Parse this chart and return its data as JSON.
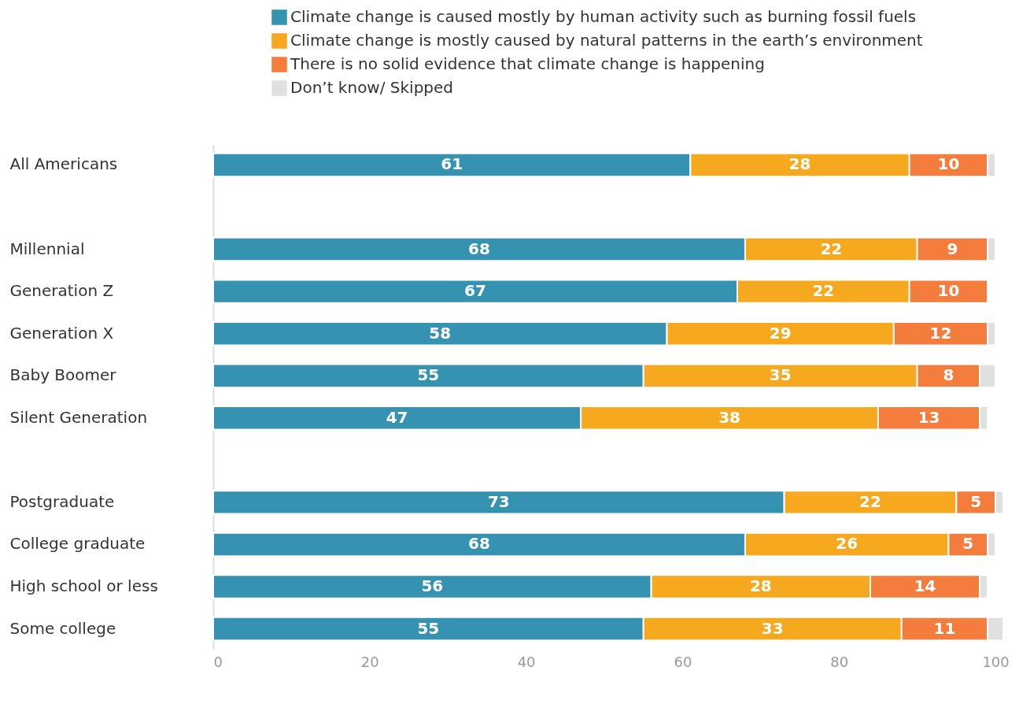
{
  "chart_data": {
    "type": "bar",
    "orientation": "horizontal",
    "stacked": true,
    "categories": [
      "All Americans",
      null,
      "Millennial",
      "Generation Z",
      "Generation X",
      "Baby Boomer",
      "Silent Generation",
      null,
      "Postgraduate",
      "College graduate",
      "High school or less",
      "Some college"
    ],
    "series": [
      {
        "name": "Climate change is caused mostly by human activity such as burning fossil fuels",
        "color": "#3592b0",
        "values": [
          61,
          null,
          68,
          67,
          58,
          55,
          47,
          null,
          73,
          68,
          56,
          55
        ],
        "value_labels": [
          "61",
          null,
          "68",
          "67",
          "58",
          "55",
          "47",
          null,
          "73",
          "68",
          "56",
          "55"
        ]
      },
      {
        "name": "Climate change is mostly caused by natural patterns in the earth’s environment",
        "color": "#f6a91e",
        "values": [
          28,
          null,
          22,
          22,
          29,
          35,
          38,
          null,
          22,
          26,
          28,
          33
        ],
        "value_labels": [
          "28",
          null,
          "22",
          "22",
          "29",
          "35",
          "38",
          null,
          "22",
          "26",
          "28",
          "33"
        ]
      },
      {
        "name": "There is no solid evidence that climate change is happening",
        "color": "#f47c3c",
        "values": [
          10,
          null,
          9,
          10,
          12,
          8,
          13,
          null,
          5,
          5,
          14,
          11
        ],
        "value_labels": [
          "10",
          null,
          "9",
          "10",
          "12",
          "8",
          "13",
          null,
          "5",
          "5",
          "14",
          "11"
        ]
      },
      {
        "name": "Don’t know/ Skipped",
        "color": "#e0e0e0",
        "values": [
          1,
          null,
          1,
          null,
          1,
          2,
          1,
          null,
          1,
          1,
          1,
          2
        ]
      }
    ],
    "xlim": [
      0,
      101
    ],
    "xticks": [
      0,
      20,
      40,
      60,
      80,
      100
    ],
    "grid": false,
    "legend": "top"
  }
}
